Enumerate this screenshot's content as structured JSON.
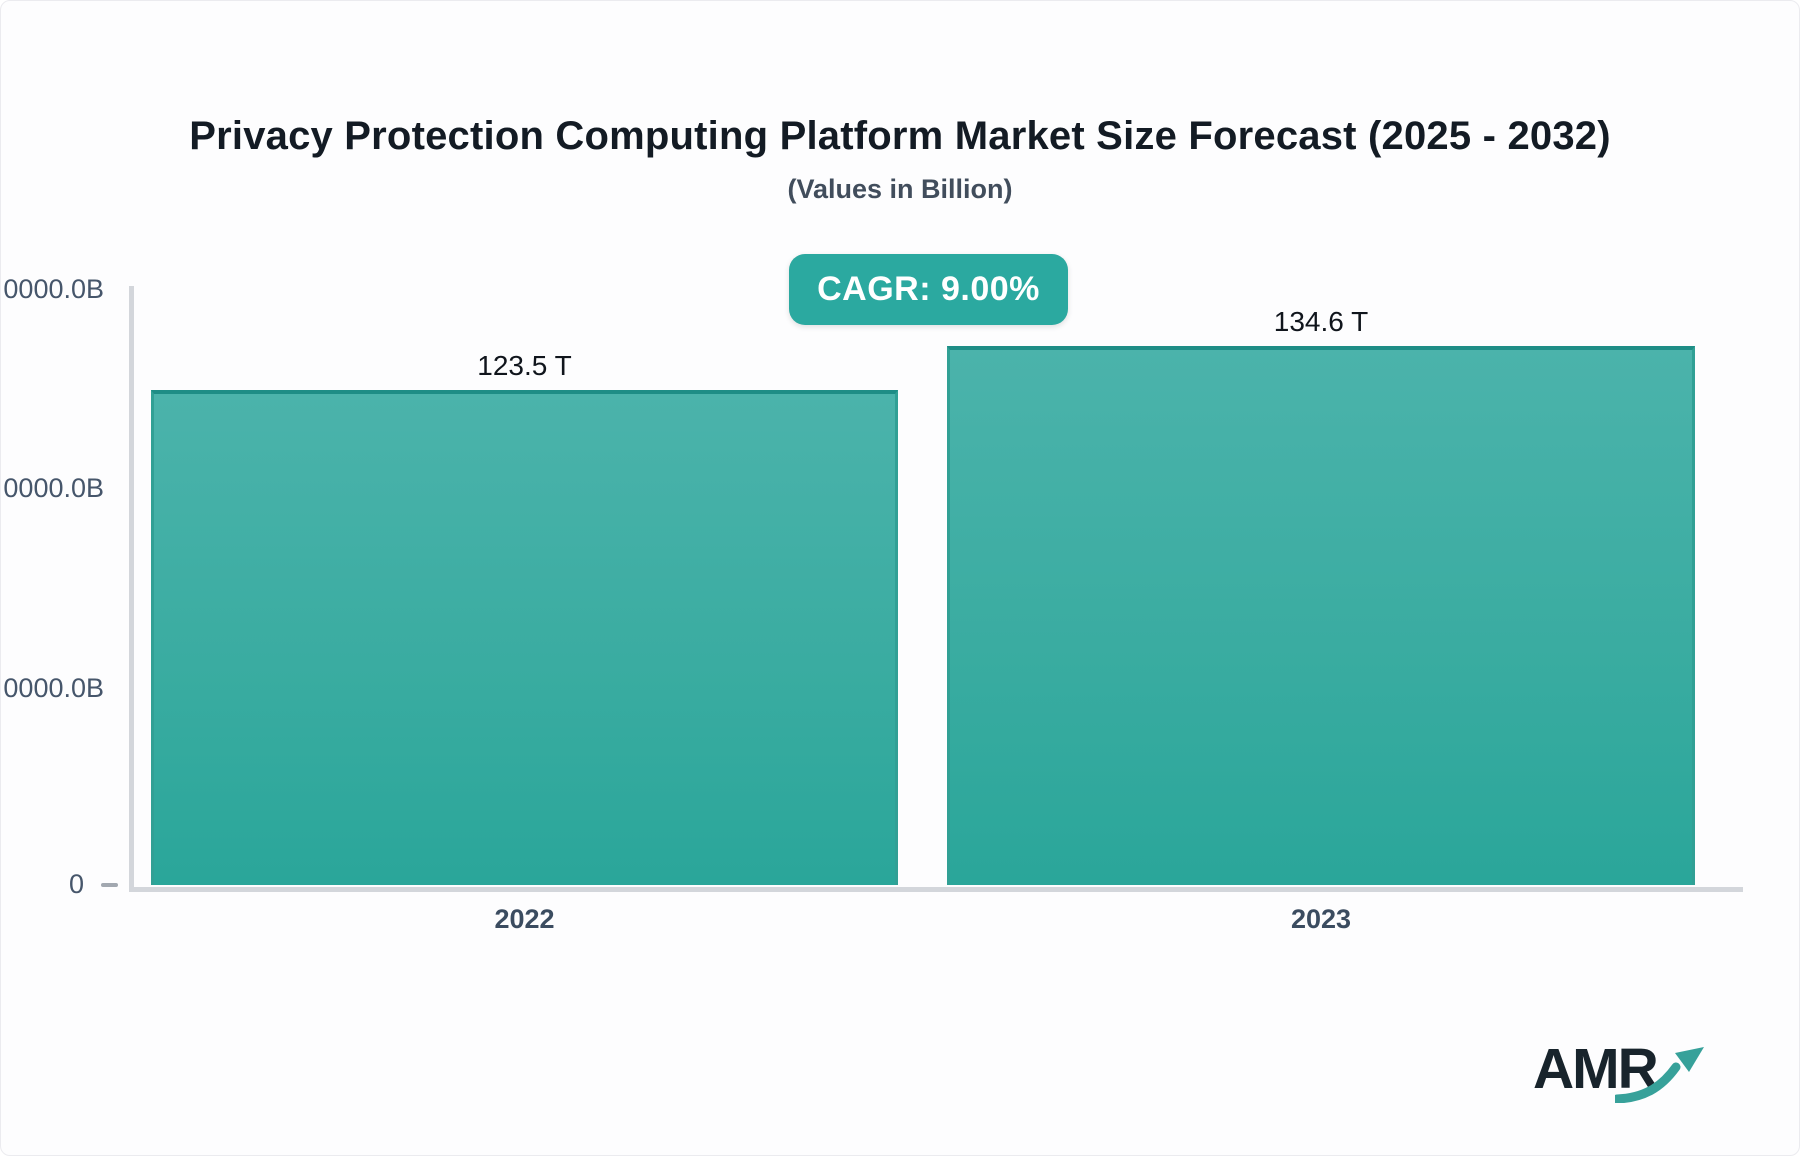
{
  "header": {
    "title": "Privacy Protection Computing Platform Market Size Forecast (2025 - 2032)",
    "subtitle": "(Values in Billion)",
    "cagr_badge": "CAGR: 9.00%"
  },
  "chart_data": {
    "type": "bar",
    "title": "Privacy Protection Computing Platform Market Size Forecast (2025 - 2032)",
    "subtitle": "(Values in Billion)",
    "categories": [
      "2022",
      "2023"
    ],
    "values": [
      123.5,
      134.6
    ],
    "value_labels": [
      "123.5 T",
      "134.6 T"
    ],
    "value_unit": "T",
    "cagr_percent": "9.00%",
    "yaxis": {
      "tick_labels": [
        "0000.0B",
        "0000.0B",
        "0000.0B",
        "0"
      ],
      "ylim": [
        0,
        150
      ],
      "grid": false
    },
    "legend_position": "none",
    "bar_color_top": "#4BB3AB",
    "bar_color_bottom": "#2AA69A",
    "bar_border_color": "#1E8D86"
  },
  "branding": {
    "logo_text": "AMR"
  },
  "colors": {
    "accent_teal": "#2BA9A0",
    "axis_line": "#D3D6DB",
    "title_text": "#131B24",
    "axis_text": "#46566B"
  }
}
